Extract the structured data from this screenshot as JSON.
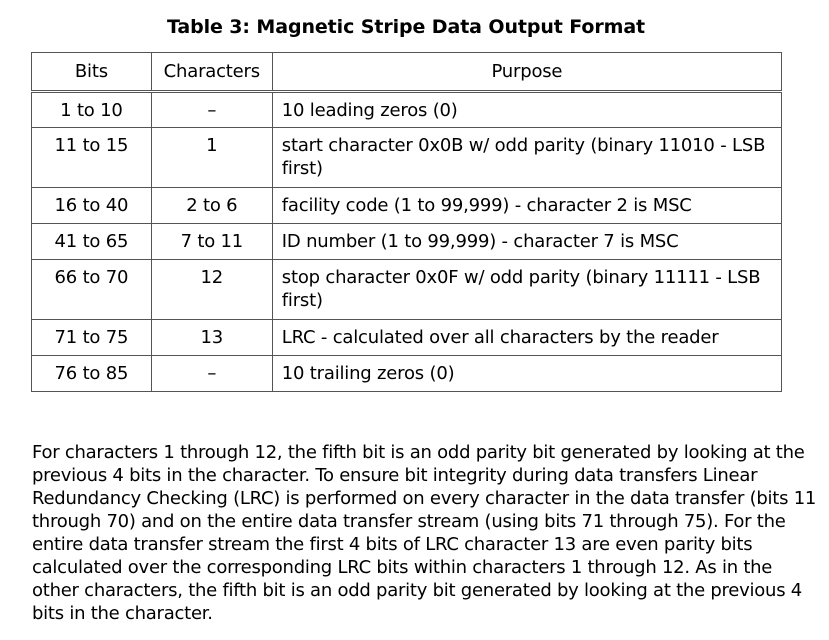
{
  "title": "Table 3: Magnetic Stripe Data Output Format",
  "table": {
    "headers": [
      "Bits",
      "Characters",
      "Purpose"
    ],
    "rows": [
      {
        "bits": "1 to 10",
        "characters": "–",
        "purpose": "10 leading zeros (0)"
      },
      {
        "bits": "11 to 15",
        "characters": "1",
        "purpose": "start character 0x0B w/ odd parity (binary 11010 - LSB first)"
      },
      {
        "bits": "16 to 40",
        "characters": "2 to 6",
        "purpose": "facility code (1 to 99,999) - character 2 is MSC"
      },
      {
        "bits": "41 to 65",
        "characters": "7 to 11",
        "purpose": "ID number (1 to 99,999) - character 7 is MSC"
      },
      {
        "bits": "66 to 70",
        "characters": "12",
        "purpose": "stop character 0x0F w/ odd parity (binary 11111 - LSB first)"
      },
      {
        "bits": "71 to 75",
        "characters": "13",
        "purpose": "LRC - calculated over all characters by the reader"
      },
      {
        "bits": "76 to 85",
        "characters": "–",
        "purpose": "10 trailing zeros (0)"
      }
    ]
  },
  "paragraph": "For characters 1 through 12, the fifth bit is an odd parity bit generated by looking at the previous 4 bits in the character. To ensure bit integrity during data transfers Linear Redundancy Checking (LRC) is performed on every character in the data transfer (bits 11 through 70) and on the entire data transfer stream (using bits 71 through 75). For the entire data transfer stream the first 4 bits of LRC character 13 are even parity bits calculated over the corresponding LRC bits within characters 1 through 12. As in the other characters, the fifth bit is an odd parity bit generated by looking at the previous 4 bits in the character."
}
